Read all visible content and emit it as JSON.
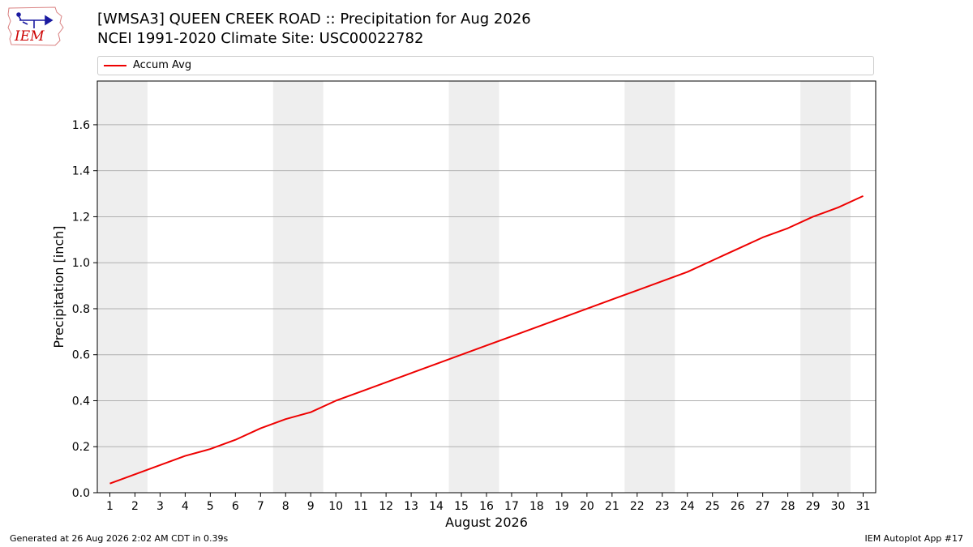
{
  "header": {
    "title_line1": "[WMSA3] QUEEN CREEK ROAD :: Precipitation for Aug 2026",
    "title_line2": "NCEI 1991-2020 Climate Site: USC00022782",
    "logo_text": "IEM"
  },
  "footer": {
    "generated": "Generated at 26 Aug 2026 2:02 AM CDT in 0.39s",
    "app": "IEM Autoplot App #17"
  },
  "colors": {
    "series": "#ee0000",
    "weekend_band": "#eeeeee",
    "grid": "#b0b0b0"
  },
  "chart_data": {
    "type": "line",
    "title": "[WMSA3] QUEEN CREEK ROAD :: Precipitation for Aug 2026",
    "subtitle": "NCEI 1991-2020 Climate Site: USC00022782",
    "xlabel": "August 2026",
    "ylabel": "Precipitation [inch]",
    "xlim": [
      0.5,
      31.5
    ],
    "ylim": [
      0,
      1.79
    ],
    "x": [
      1,
      2,
      3,
      4,
      5,
      6,
      7,
      8,
      9,
      10,
      11,
      12,
      13,
      14,
      15,
      16,
      17,
      18,
      19,
      20,
      21,
      22,
      23,
      24,
      25,
      26,
      27,
      28,
      29,
      30,
      31
    ],
    "xticks": [
      "1",
      "2",
      "3",
      "4",
      "5",
      "6",
      "7",
      "8",
      "9",
      "10",
      "11",
      "12",
      "13",
      "14",
      "15",
      "16",
      "17",
      "18",
      "19",
      "20",
      "21",
      "22",
      "23",
      "24",
      "25",
      "26",
      "27",
      "28",
      "29",
      "30",
      "31"
    ],
    "yticks": [
      "0.0",
      "0.2",
      "0.4",
      "0.6",
      "0.8",
      "1.0",
      "1.2",
      "1.4",
      "1.6"
    ],
    "ytick_values": [
      0,
      0.2,
      0.4,
      0.6,
      0.8,
      1.0,
      1.2,
      1.4,
      1.6
    ],
    "grid": "horizontal",
    "legend_position": "top",
    "shaded_day_ranges": [
      [
        0.5,
        2.5
      ],
      [
        7.5,
        9.5
      ],
      [
        14.5,
        16.5
      ],
      [
        21.5,
        23.5
      ],
      [
        28.5,
        30.5
      ]
    ],
    "series": [
      {
        "name": "Accum Avg",
        "values": [
          0.04,
          0.08,
          0.12,
          0.16,
          0.19,
          0.23,
          0.28,
          0.32,
          0.35,
          0.4,
          0.44,
          0.48,
          0.52,
          0.56,
          0.6,
          0.64,
          0.68,
          0.72,
          0.76,
          0.8,
          0.84,
          0.88,
          0.92,
          0.96,
          1.01,
          1.06,
          1.11,
          1.15,
          1.2,
          1.24,
          1.29
        ]
      }
    ]
  }
}
